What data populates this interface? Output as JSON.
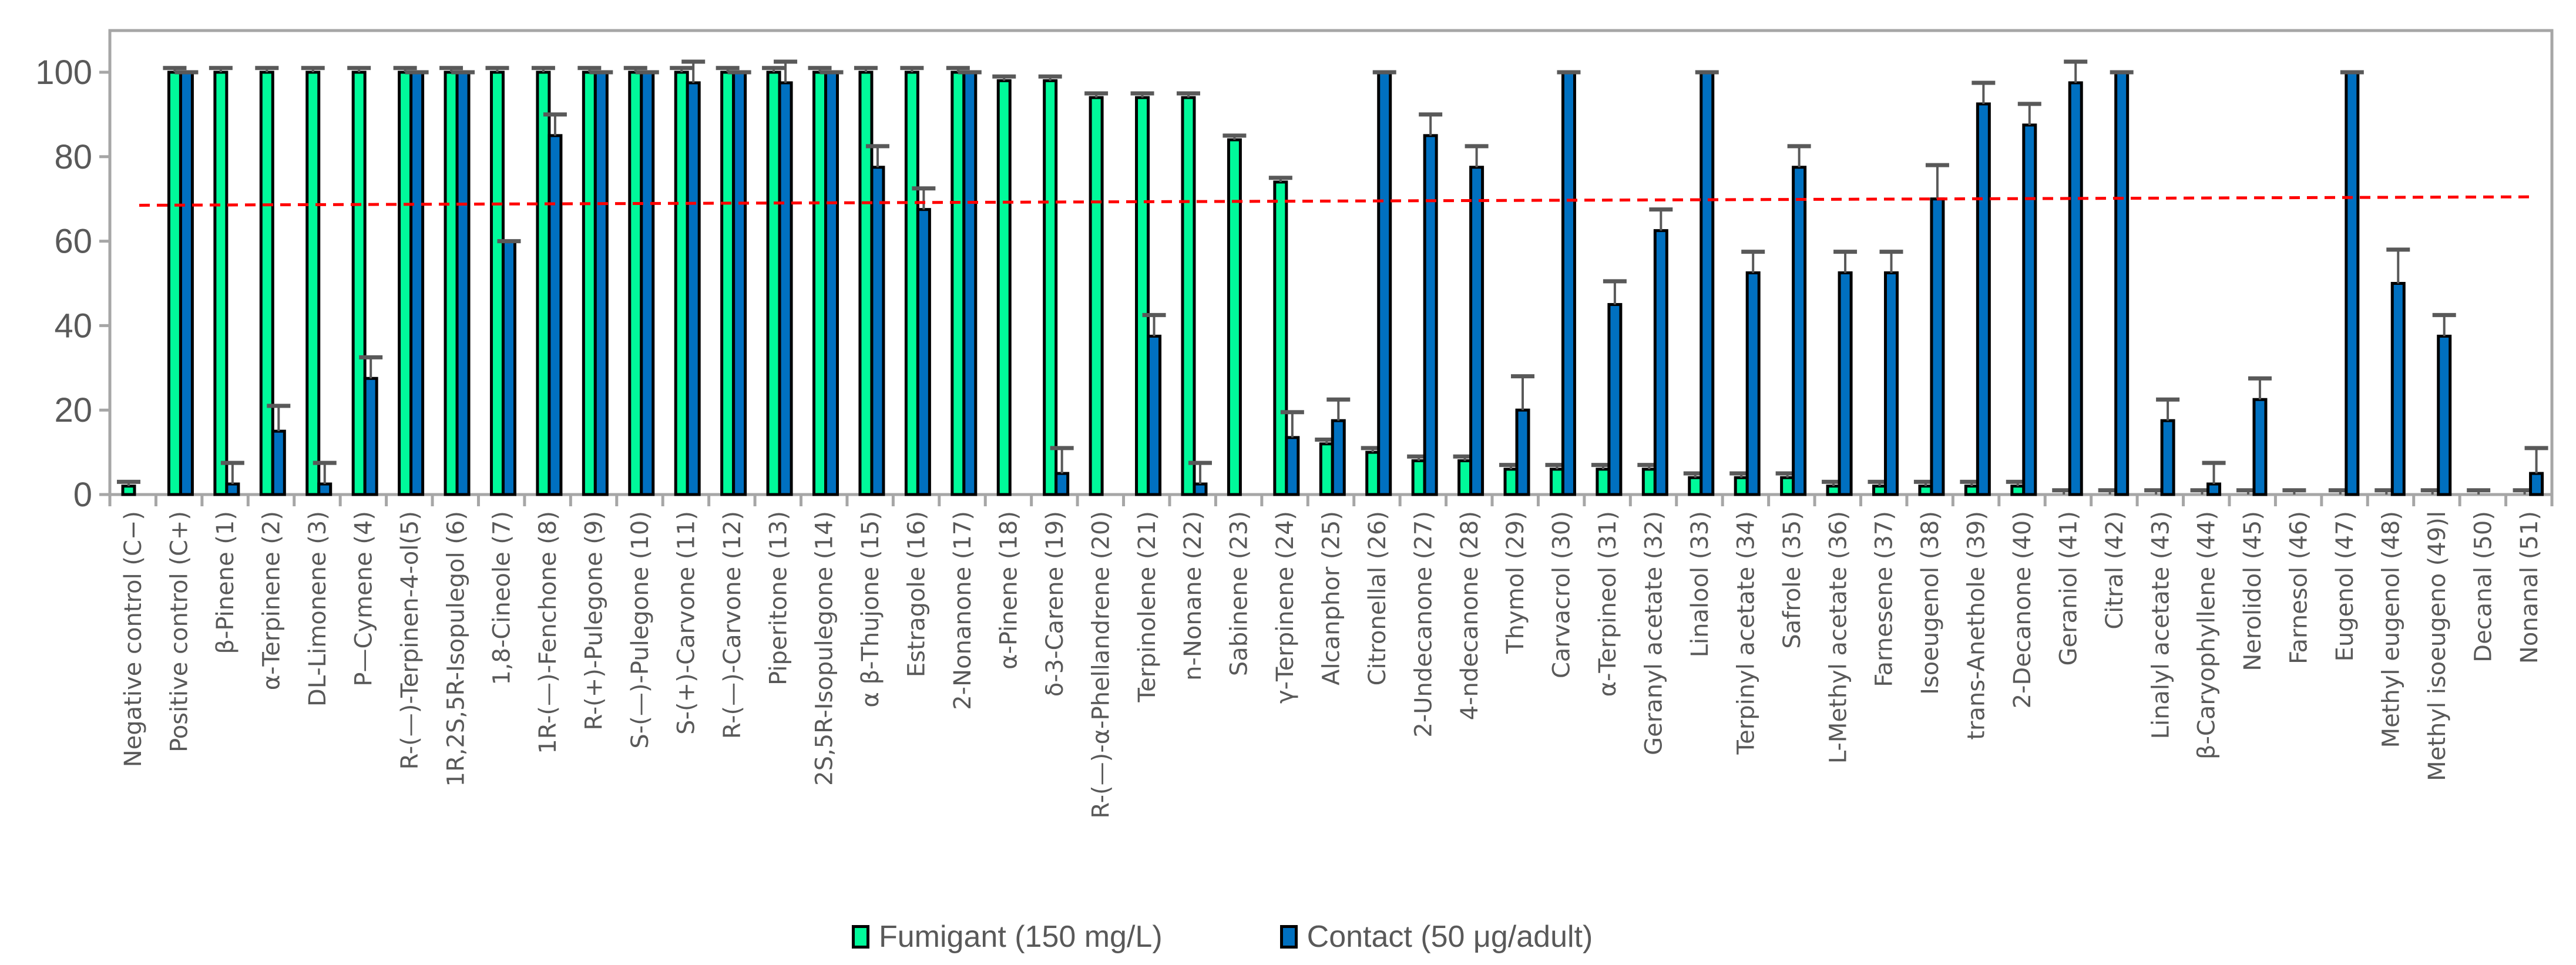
{
  "chart_data": {
    "type": "bar",
    "title": "",
    "xlabel": "",
    "ylabel": "",
    "ylim": [
      0,
      110
    ],
    "yticks": [
      0,
      20,
      40,
      60,
      80,
      100
    ],
    "grid": false,
    "legend_position": "bottom",
    "categories": [
      "Negative control  (C−)",
      "Positive control  (C+)",
      "β-Pinene    (1)",
      "α-Terpinene    (2)",
      "DL-Limonene    (3)",
      "P—Cymene (4)",
      "R-(—)-Terpinen-4-ol(5)",
      "1R,2S,5R-Isopulegol (6)",
      "1,8-Cineole (7)",
      "1R-(—)-Fenchone (8)",
      "R-(+)-Pulegone (9)",
      "S-(—)-Pulegone (10)",
      "S-(+)-Carvone (11)",
      "R-(—)-Carvone (12)",
      "Piperitone (13)",
      "2S,5R-Isopulegone (14)",
      "α β-Thujone (15)",
      "Estragole (16)",
      "2-Nonanone (17)",
      "α-Pinene    (18)",
      "δ-3-Carene (19)",
      "R-(—)-α-Phellandrene    (20)",
      "Terpinolene    (21)",
      "n-Nonane (22)",
      "Sabinene    (23)",
      "γ-Terpinene (24)",
      "Alcanphor (25)",
      "Citronellal (26)",
      "2-Undecanone (27)",
      "4-ndecanone (28)",
      "Thymol (29)",
      "Carvacrol (30)",
      "α-Terpineol (31)",
      "Geranyl acetate (32)",
      "Linalool (33)",
      "Terpinyl acetate (34)",
      "Safrole (35)",
      "L-Methyl acetate (36)",
      "Farnesene (37)",
      "Isoeugenol (38)",
      "trans-Anethole (39)",
      "2-Decanone (40)",
      "Geraniol (41)",
      "Citral (42)",
      "Linalyl acetate (43)",
      "β-Caryophyllene (44)",
      "Nerolidol (45)",
      "Farnesol (46)",
      "Eugenol (47)",
      "Methyl eugenol (48)",
      "Methyl isoeugeno (49)l",
      "Decanal (50)",
      "Nonanal (51)"
    ],
    "series": [
      {
        "name": "Fumigant (150 mg/L)",
        "color": "#00FA9A",
        "values": [
          2,
          100,
          100,
          100,
          100,
          100,
          100,
          100,
          100,
          100,
          100,
          100,
          100,
          100,
          100,
          100,
          100,
          100,
          100,
          98,
          98,
          94,
          94,
          94,
          84,
          74,
          12,
          10,
          8,
          8,
          6,
          6,
          6,
          6,
          4,
          4,
          4,
          2,
          2,
          2,
          2,
          2,
          0,
          0,
          0,
          0,
          0,
          0,
          0,
          0,
          0,
          0,
          0
        ],
        "errors": [
          1,
          1,
          1,
          1,
          1,
          1,
          1,
          1,
          1,
          1,
          1,
          1,
          1,
          1,
          1,
          1,
          1,
          1,
          1,
          1,
          1,
          1,
          1,
          1,
          1,
          1,
          1,
          1,
          1,
          1,
          1,
          1,
          1,
          1,
          1,
          1,
          1,
          1,
          1,
          1,
          1,
          1,
          1,
          1,
          1,
          1,
          1,
          1,
          1,
          1,
          1,
          1,
          1
        ]
      },
      {
        "name": "Contact (50 μg/adult)",
        "color": "#0070C0",
        "values": [
          0,
          100,
          2.5,
          15,
          2.5,
          27.5,
          100,
          100,
          60,
          85,
          100,
          100,
          97.5,
          100,
          97.5,
          100,
          77.5,
          67.5,
          100,
          0,
          5,
          0,
          37.5,
          2.5,
          0,
          13.5,
          17.5,
          100,
          85,
          77.5,
          20,
          100,
          45,
          62.5,
          100,
          52.5,
          77.5,
          52.5,
          52.5,
          70,
          92.5,
          87.5,
          97.5,
          100,
          17.5,
          2.5,
          22.5,
          0,
          100,
          50,
          37.5,
          0,
          5
        ],
        "errors": [
          0,
          0,
          5,
          6,
          5,
          5,
          0,
          0,
          0,
          5,
          0,
          0,
          5,
          0,
          5,
          0,
          5,
          5,
          0,
          0,
          6,
          0,
          5,
          5,
          0,
          6,
          5,
          0,
          5,
          5,
          8,
          0,
          5.5,
          5,
          0,
          5,
          5,
          5,
          5,
          8,
          5,
          5,
          5,
          0,
          5,
          5,
          5,
          0,
          0,
          8,
          5,
          0,
          6
        ]
      }
    ],
    "reference_line": {
      "style": "dashed",
      "color": "#FF0000",
      "start_value": 68.5,
      "end_value": 70.5
    }
  },
  "legend": {
    "fumigant_label": "Fumigant (150 mg/L)",
    "contact_label": "Contact (50 μg/adult)"
  }
}
